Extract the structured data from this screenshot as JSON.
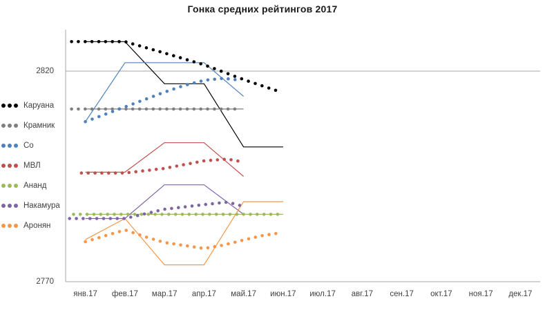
{
  "chart_data": {
    "type": "line",
    "title": "Гонка средних рейтингов 2017",
    "x_categories": [
      "янв.17",
      "фев.17",
      "мар.17",
      "апр.17",
      "май.17",
      "июн.17",
      "июл.17",
      "авг.17",
      "сен.17",
      "окт.17",
      "ноя.17",
      "дек.17"
    ],
    "y_ticks": [
      2820,
      2770
    ],
    "y_range": [
      2770,
      2830
    ],
    "grid": "single horizontal gridline at 2820",
    "legend_position": "left",
    "axis_color": "#A6A6A6",
    "text_color": "#404040",
    "note": "Each player has a thin solid line (monthly rating, Jan–Jun 2017) and a dotted curve (running average of the rating race).",
    "series": [
      {
        "name": "Каруана",
        "slug": "caruana",
        "color": "#000000",
        "monthly_ratings": [
          2827,
          2827,
          2817,
          2817,
          2802,
          2802
        ],
        "running_average": [
          [
            -0.35,
            2827
          ],
          [
            1,
            2827
          ],
          [
            2,
            2824.3
          ],
          [
            3,
            2821.5
          ],
          [
            4,
            2818
          ],
          [
            4.95,
            2815
          ]
        ]
      },
      {
        "name": "Крамник",
        "slug": "kramnik",
        "color": "#7F7F7F",
        "monthly_ratings": [
          2811,
          2811,
          2811,
          2811,
          2811
        ],
        "running_average": [
          [
            -0.35,
            2811
          ],
          [
            3.9,
            2811
          ]
        ]
      },
      {
        "name": "Со",
        "slug": "so",
        "color": "#4F81BD",
        "monthly_ratings": [
          2808,
          2822,
          2822,
          2822,
          2814
        ],
        "running_average": [
          [
            0,
            2808
          ],
          [
            1,
            2811.5
          ],
          [
            2,
            2815
          ],
          [
            2.5,
            2816.6
          ],
          [
            3,
            2817.8
          ],
          [
            3.5,
            2818.3
          ],
          [
            3.93,
            2817.8
          ]
        ]
      },
      {
        "name": "МВЛ",
        "slug": "mvl",
        "color": "#C0504D",
        "monthly_ratings": [
          2796,
          2796,
          2803,
          2803,
          2795
        ],
        "running_average": [
          [
            -0.1,
            2795.8
          ],
          [
            1,
            2795.8
          ],
          [
            2,
            2796.9
          ],
          [
            3,
            2798.7
          ],
          [
            3.6,
            2799.1
          ],
          [
            4,
            2798.4
          ]
        ]
      },
      {
        "name": "Ананд",
        "slug": "anand",
        "color": "#9BBB59",
        "monthly_ratings": [
          2786,
          2786,
          2786,
          2786,
          2786,
          2786
        ],
        "running_average": [
          [
            -0.3,
            2786
          ],
          [
            4.95,
            2786
          ]
        ]
      },
      {
        "name": "Накамура",
        "slug": "nakamura",
        "color": "#8064A2",
        "monthly_ratings": [
          2785,
          2785,
          2793,
          2793,
          2786
        ],
        "running_average": [
          [
            -0.4,
            2785
          ],
          [
            1,
            2785
          ],
          [
            2,
            2787.2
          ],
          [
            3,
            2788.3
          ],
          [
            3.6,
            2788.9
          ],
          [
            3.95,
            2788
          ]
        ]
      },
      {
        "name": "Аронян",
        "slug": "aronian",
        "color": "#F79646",
        "monthly_ratings": [
          2780,
          2785,
          2774,
          2774,
          2789,
          2789
        ],
        "running_average": [
          [
            0,
            2779.5
          ],
          [
            1,
            2782.3
          ],
          [
            1.5,
            2780.7
          ],
          [
            2,
            2779.3
          ],
          [
            3,
            2777.9
          ],
          [
            3.5,
            2778.7
          ],
          [
            4,
            2779.9
          ],
          [
            4.5,
            2781
          ],
          [
            4.87,
            2781.5
          ]
        ]
      }
    ]
  }
}
